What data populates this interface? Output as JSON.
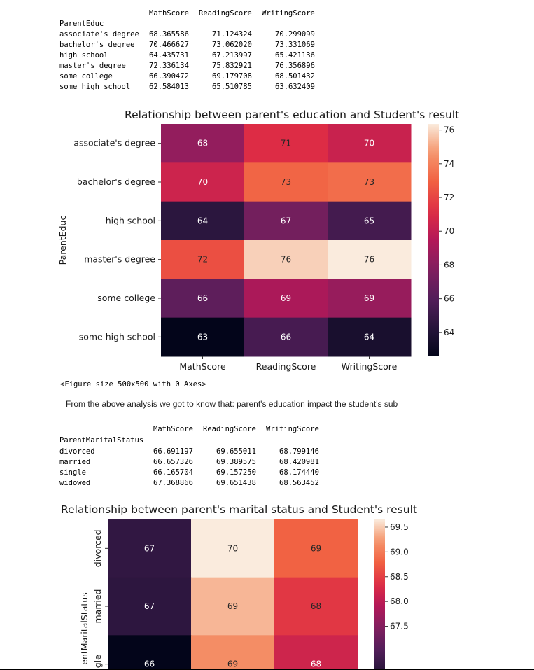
{
  "table1": {
    "columns": [
      "MathScore",
      "ReadingScore",
      "WritingScore"
    ],
    "index_name": "ParentEduc",
    "rows": [
      {
        "label": "associate's degree",
        "values": [
          "68.365586",
          "71.124324",
          "70.299099"
        ]
      },
      {
        "label": "bachelor's degree",
        "values": [
          "70.466627",
          "73.062020",
          "73.331069"
        ]
      },
      {
        "label": "high school",
        "values": [
          "64.435731",
          "67.213997",
          "65.421136"
        ]
      },
      {
        "label": "master's degree",
        "values": [
          "72.336134",
          "75.832921",
          "76.356896"
        ]
      },
      {
        "label": "some college",
        "values": [
          "66.390472",
          "69.179708",
          "68.501432"
        ]
      },
      {
        "label": "some high school",
        "values": [
          "62.584013",
          "65.510785",
          "63.632409"
        ]
      }
    ]
  },
  "figure_size_text": "<Figure size 500x500 with 0 Axes>",
  "analysis_text": "From the above analysis we got to know that: parent's education impact the student's sub",
  "table2": {
    "columns": [
      "MathScore",
      "ReadingScore",
      "WritingScore"
    ],
    "index_name": "ParentMaritalStatus",
    "rows": [
      {
        "label": "divorced",
        "values": [
          "66.691197",
          "69.655011",
          "68.799146"
        ]
      },
      {
        "label": "married",
        "values": [
          "66.657326",
          "69.389575",
          "68.420981"
        ]
      },
      {
        "label": "single",
        "values": [
          "66.165704",
          "69.157250",
          "68.174440"
        ]
      },
      {
        "label": "widowed",
        "values": [
          "67.368866",
          "69.651438",
          "68.563452"
        ]
      }
    ]
  },
  "chart_data": [
    {
      "type": "heatmap",
      "title": "Relationship between parent's education and Student's result",
      "ylabel": "ParentEduc",
      "xlabel": "",
      "x": [
        "MathScore",
        "ReadingScore",
        "WritingScore"
      ],
      "y": [
        "associate's degree",
        "bachelor's degree",
        "high school",
        "master's degree",
        "some college",
        "some high school"
      ],
      "values": [
        [
          68.365586,
          71.124324,
          70.299099
        ],
        [
          70.466627,
          73.06202,
          73.331069
        ],
        [
          64.435731,
          67.213997,
          65.421136
        ],
        [
          72.336134,
          75.832921,
          76.356896
        ],
        [
          66.390472,
          69.179708,
          68.501432
        ],
        [
          62.584013,
          65.510785,
          63.632409
        ]
      ],
      "annotations": [
        [
          "68",
          "71",
          "70"
        ],
        [
          "70",
          "73",
          "73"
        ],
        [
          "64",
          "67",
          "65"
        ],
        [
          "72",
          "76",
          "76"
        ],
        [
          "66",
          "69",
          "69"
        ],
        [
          "63",
          "66",
          "64"
        ]
      ],
      "colorbar_ticks": [
        "64",
        "66",
        "68",
        "70",
        "72",
        "74",
        "76"
      ],
      "colorbar_tick_values": [
        64,
        66,
        68,
        70,
        72,
        74,
        76
      ],
      "vmin": 62.584013,
      "vmax": 76.356896,
      "colormap": "rocket"
    },
    {
      "type": "heatmap",
      "title": "Relationship between parent's marital status and Student's result",
      "ylabel": "entMaritalStatus",
      "xlabel": "",
      "x": [
        "MathScore",
        "ReadingScore",
        "WritingScore"
      ],
      "y": [
        "divorced",
        "married",
        "ngle"
      ],
      "values": [
        [
          66.691197,
          69.655011,
          68.799146
        ],
        [
          66.657326,
          69.389575,
          68.420981
        ],
        [
          66.165704,
          69.15725,
          68.17444
        ]
      ],
      "annotations": [
        [
          "67",
          "70",
          "69"
        ],
        [
          "67",
          "69",
          "68"
        ],
        [
          "66",
          "69",
          "68"
        ]
      ],
      "colorbar_ticks": [
        "69.5",
        "69.0",
        "68.5",
        "68.0",
        "67.5"
      ],
      "colorbar_tick_values": [
        69.5,
        69.0,
        68.5,
        68.0,
        67.5
      ],
      "vmin": 66.165704,
      "vmax": 69.655011,
      "colormap": "rocket"
    }
  ]
}
